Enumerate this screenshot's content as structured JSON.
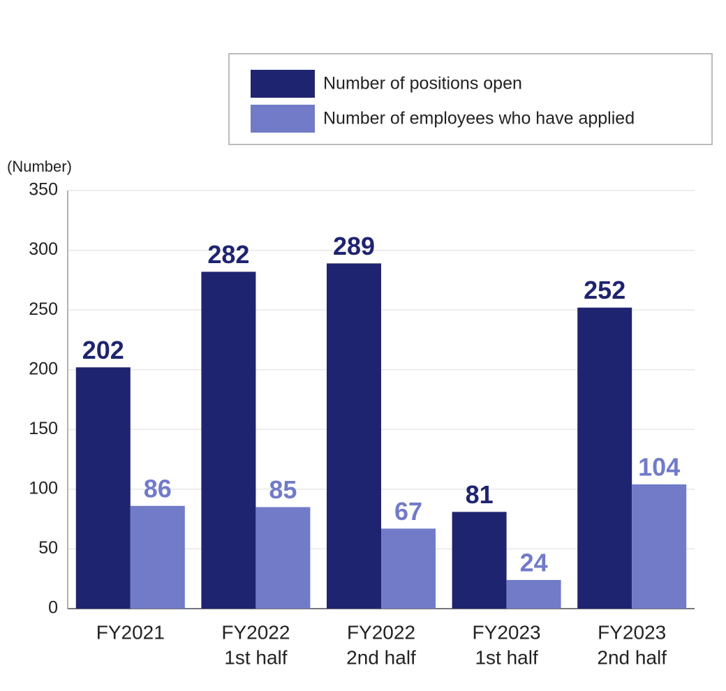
{
  "chart_data": {
    "type": "bar",
    "y_label": "(Number)",
    "categories": [
      [
        "FY2021"
      ],
      [
        "FY2022",
        "1st half"
      ],
      [
        "FY2022",
        "2nd half"
      ],
      [
        "FY2023",
        "1st half"
      ],
      [
        "FY2023",
        "2nd half"
      ]
    ],
    "series": [
      {
        "name": "Number of positions open",
        "color": "#1f2470",
        "values": [
          202,
          282,
          289,
          81,
          252
        ]
      },
      {
        "name": "Number of employees who have applied",
        "color": "#717bc8",
        "values": [
          86,
          85,
          67,
          24,
          104
        ]
      }
    ],
    "ylim": [
      0,
      350
    ],
    "yticks": [
      0,
      50,
      100,
      150,
      200,
      250,
      300,
      350
    ],
    "grid": true,
    "legend": "top-right"
  }
}
